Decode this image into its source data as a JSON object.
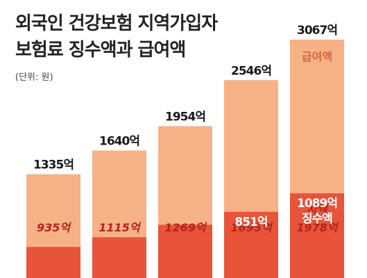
{
  "header": {
    "title_line1": "외국인 건강보험 지역가입자",
    "title_line2": "보험료 징수액과 급여액",
    "unit": "(단위: 원)"
  },
  "chart_data": {
    "type": "bar",
    "title": "외국인 건강보험 지역가입자 보험료 징수액과 급여액",
    "unit": "(단위: 원)",
    "categories": [
      "",
      "",
      "",
      "",
      ""
    ],
    "series": [
      {
        "name": "급여액",
        "values": [
          1335,
          1640,
          1954,
          2546,
          3067
        ],
        "labels": [
          "1335억",
          "1640억",
          "1954억",
          "2546억",
          "3067억"
        ]
      },
      {
        "name": "징수액",
        "values": [
          400,
          525,
          685,
          851,
          1089
        ],
        "labels": [
          "",
          "",
          "",
          "851억",
          "1089억"
        ]
      }
    ],
    "difference": {
      "name": "차액",
      "values": [
        935,
        1115,
        1269,
        1695,
        1978
      ],
      "labels": [
        "935억",
        "1115억",
        "1269억",
        "1695억",
        "1978억"
      ]
    },
    "ylim": [
      0,
      3200
    ],
    "colors": {
      "benefit": "#f7b187",
      "collection": "#e8533a",
      "difference_text": "#b3241a",
      "benefit_text": "#d9663e"
    }
  }
}
